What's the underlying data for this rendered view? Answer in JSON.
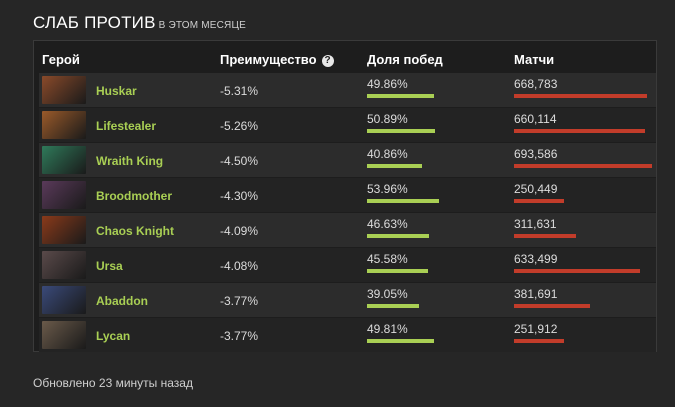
{
  "header": {
    "title": "СЛАБ ПРОТИВ",
    "subtitle": "в этом месяце"
  },
  "table": {
    "columns": {
      "hero": "Герой",
      "advantage": "Преимущество",
      "advantage_help_icon": "?",
      "winrate": "Доля побед",
      "matches": "Матчи"
    },
    "rows": [
      {
        "hero": "Huskar",
        "portrait_icon": "huskar-portrait",
        "portrait_color": "#8a4a2a",
        "advantage": "-5.31%",
        "winrate": "49.86%",
        "winrate_value": 49.86,
        "matches": "668,783",
        "matches_value": 668783
      },
      {
        "hero": "Lifestealer",
        "portrait_icon": "lifestealer-portrait",
        "portrait_color": "#9a5a2a",
        "advantage": "-5.26%",
        "winrate": "50.89%",
        "winrate_value": 50.89,
        "matches": "660,114",
        "matches_value": 660114
      },
      {
        "hero": "Wraith King",
        "portrait_icon": "wraith-king-portrait",
        "portrait_color": "#2f7a5a",
        "advantage": "-4.50%",
        "winrate": "40.86%",
        "winrate_value": 40.86,
        "matches": "693,586",
        "matches_value": 693586
      },
      {
        "hero": "Broodmother",
        "portrait_icon": "broodmother-portrait",
        "portrait_color": "#5a3a5a",
        "advantage": "-4.30%",
        "winrate": "53.96%",
        "winrate_value": 53.96,
        "matches": "250,449",
        "matches_value": 250449
      },
      {
        "hero": "Chaos Knight",
        "portrait_icon": "chaos-knight-portrait",
        "portrait_color": "#8a3a1a",
        "advantage": "-4.09%",
        "winrate": "46.63%",
        "winrate_value": 46.63,
        "matches": "311,631",
        "matches_value": 311631
      },
      {
        "hero": "Ursa",
        "portrait_icon": "ursa-portrait",
        "portrait_color": "#5a4a4a",
        "advantage": "-4.08%",
        "winrate": "45.58%",
        "winrate_value": 45.58,
        "matches": "633,499",
        "matches_value": 633499
      },
      {
        "hero": "Abaddon",
        "portrait_icon": "abaddon-portrait",
        "portrait_color": "#3a4a7a",
        "advantage": "-3.77%",
        "winrate": "39.05%",
        "winrate_value": 39.05,
        "matches": "381,691",
        "matches_value": 381691
      },
      {
        "hero": "Lycan",
        "portrait_icon": "lycan-portrait",
        "portrait_color": "#6a5a4a",
        "advantage": "-3.77%",
        "winrate": "49.81%",
        "winrate_value": 49.81,
        "matches": "251,912",
        "matches_value": 251912
      }
    ]
  },
  "colors": {
    "hero_name": "#a9cf54",
    "winrate_bar": "#a9cf54",
    "matches_bar": "#c23c2a"
  },
  "footer": {
    "updated": "Обновлено 23 минуты назад"
  }
}
